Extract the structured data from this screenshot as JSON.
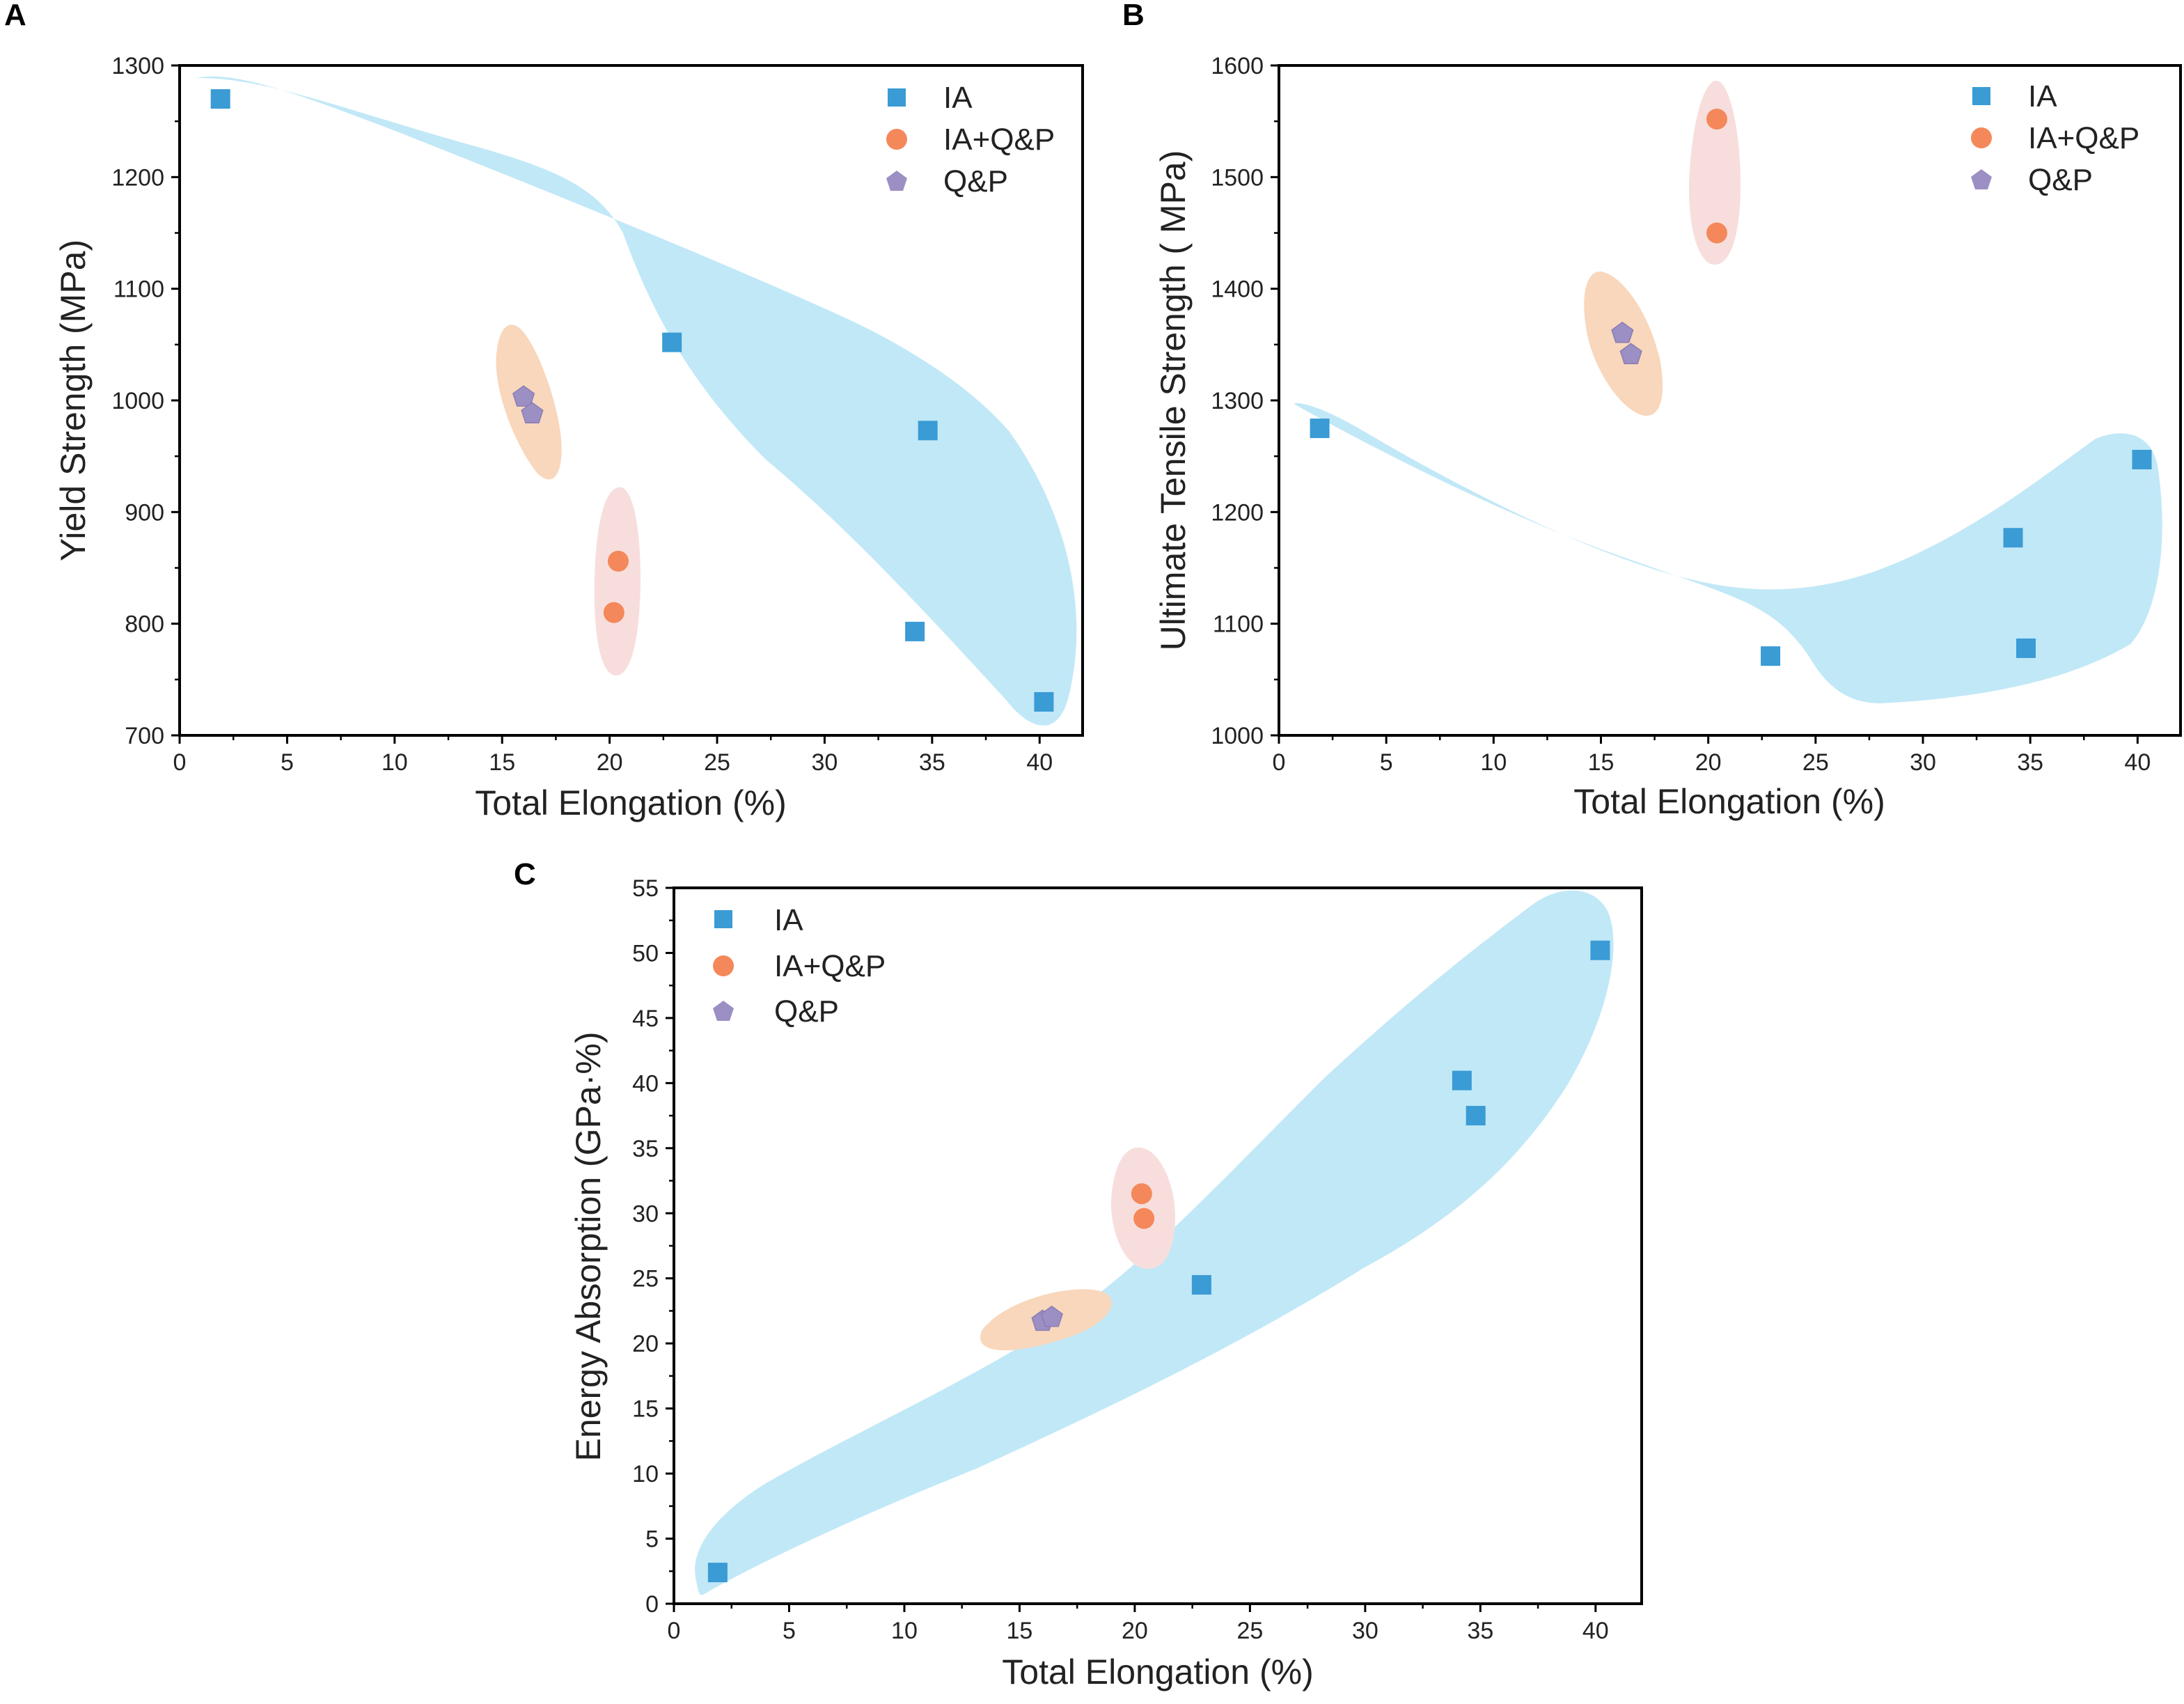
{
  "chart_data": [
    {
      "panel": "A",
      "type": "scatter",
      "xlabel": "Total Elongation (%)",
      "ylabel": "Yield Strength (MPa)",
      "xlim": [
        0,
        42
      ],
      "ylim": [
        700,
        1300
      ],
      "xticks": [
        0,
        5,
        10,
        15,
        20,
        25,
        30,
        35,
        40
      ],
      "yticks": [
        700,
        800,
        900,
        1000,
        1100,
        1200,
        1300
      ],
      "legend": [
        "IA",
        "IA+Q&P",
        "Q&P"
      ],
      "legend_position": "top-right",
      "series": [
        {
          "name": "IA",
          "marker": "square",
          "color": "#3a9bd5",
          "points": [
            [
              1.9,
              1270
            ],
            [
              22.9,
              1052
            ],
            [
              34.8,
              973
            ],
            [
              34.2,
              793
            ],
            [
              40.2,
              730
            ]
          ]
        },
        {
          "name": "IA+Q&P",
          "marker": "circle",
          "color": "#f4885a",
          "points": [
            [
              20.4,
              856
            ],
            [
              20.2,
              810
            ]
          ]
        },
        {
          "name": "Q&P",
          "marker": "pentagon",
          "color": "#9c8fc4",
          "points": [
            [
              16.0,
              1003
            ],
            [
              16.4,
              988
            ]
          ]
        }
      ]
    },
    {
      "panel": "B",
      "type": "scatter",
      "xlabel": "Total Elongation (%)",
      "ylabel": "Ultimate Tensile Strength ( MPa)",
      "xlim": [
        0,
        42
      ],
      "ylim": [
        1000,
        1600
      ],
      "xticks": [
        0,
        5,
        10,
        15,
        20,
        25,
        30,
        35,
        40
      ],
      "yticks": [
        1000,
        1100,
        1200,
        1300,
        1400,
        1500,
        1600
      ],
      "legend": [
        "IA",
        "IA+Q&P",
        "Q&P"
      ],
      "legend_position": "top-right",
      "series": [
        {
          "name": "IA",
          "marker": "square",
          "color": "#3a9bd5",
          "points": [
            [
              1.9,
              1275
            ],
            [
              22.9,
              1071
            ],
            [
              34.2,
              1177
            ],
            [
              34.8,
              1078
            ],
            [
              40.2,
              1247
            ]
          ]
        },
        {
          "name": "IA+Q&P",
          "marker": "circle",
          "color": "#f4885a",
          "points": [
            [
              20.4,
              1552
            ],
            [
              20.4,
              1450
            ]
          ]
        },
        {
          "name": "Q&P",
          "marker": "pentagon",
          "color": "#9c8fc4",
          "points": [
            [
              16.0,
              1360
            ],
            [
              16.4,
              1341
            ]
          ]
        }
      ]
    },
    {
      "panel": "C",
      "type": "scatter",
      "xlabel": "Total Elongation (%)",
      "ylabel": "Energy Absorption (GPa·%)",
      "xlim": [
        0,
        42
      ],
      "ylim": [
        0,
        55
      ],
      "xticks": [
        0,
        5,
        10,
        15,
        20,
        25,
        30,
        35,
        40
      ],
      "yticks": [
        0,
        5,
        10,
        15,
        20,
        25,
        30,
        35,
        40,
        45,
        50,
        55
      ],
      "legend": [
        "IA",
        "IA+Q&P",
        "Q&P"
      ],
      "legend_position": "top-left",
      "series": [
        {
          "name": "IA",
          "marker": "square",
          "color": "#3a9bd5",
          "points": [
            [
              1.9,
              2.4
            ],
            [
              22.9,
              24.5
            ],
            [
              34.2,
              40.2
            ],
            [
              34.8,
              37.5
            ],
            [
              40.2,
              50.2
            ]
          ]
        },
        {
          "name": "IA+Q&P",
          "marker": "circle",
          "color": "#f4885a",
          "points": [
            [
              20.3,
              31.5
            ],
            [
              20.4,
              29.6
            ]
          ]
        },
        {
          "name": "Q&P",
          "marker": "pentagon",
          "color": "#9c8fc4",
          "points": [
            [
              16.0,
              21.7
            ],
            [
              16.4,
              22.0
            ]
          ]
        }
      ]
    }
  ]
}
